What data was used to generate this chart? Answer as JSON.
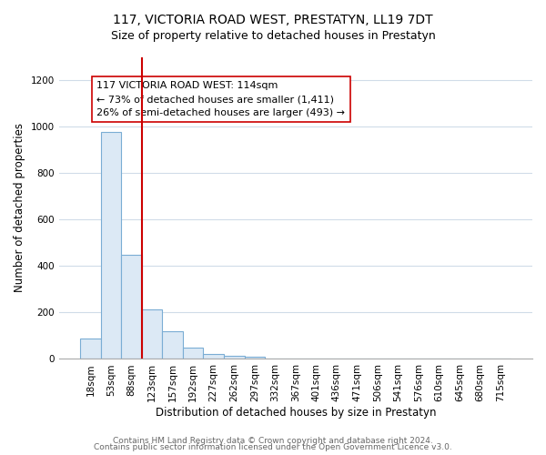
{
  "title": "117, VICTORIA ROAD WEST, PRESTATYN, LL19 7DT",
  "subtitle": "Size of property relative to detached houses in Prestatyn",
  "xlabel": "Distribution of detached houses by size in Prestatyn",
  "ylabel": "Number of detached properties",
  "bar_labels": [
    "18sqm",
    "53sqm",
    "88sqm",
    "123sqm",
    "157sqm",
    "192sqm",
    "227sqm",
    "262sqm",
    "297sqm",
    "332sqm",
    "367sqm",
    "401sqm",
    "436sqm",
    "471sqm",
    "506sqm",
    "541sqm",
    "576sqm",
    "610sqm",
    "645sqm",
    "680sqm",
    "715sqm"
  ],
  "bar_values": [
    88,
    975,
    450,
    215,
    120,
    50,
    20,
    15,
    10,
    0,
    0,
    0,
    0,
    0,
    0,
    0,
    0,
    0,
    0,
    0,
    0
  ],
  "bar_fill_color": "#dce9f5",
  "bar_edge_color": "#7aadd4",
  "vline_color": "#cc0000",
  "vline_position": 2.5,
  "annotation_lines": [
    "117 VICTORIA ROAD WEST: 114sqm",
    "← 73% of detached houses are smaller (1,411)",
    "26% of semi-detached houses are larger (493) →"
  ],
  "ylim": [
    0,
    1300
  ],
  "yticks": [
    0,
    200,
    400,
    600,
    800,
    1000,
    1200
  ],
  "grid_color": "#d0dce8",
  "title_fontsize": 10,
  "subtitle_fontsize": 9,
  "axis_label_fontsize": 8.5,
  "tick_fontsize": 7.5,
  "annotation_fontsize": 8,
  "footer_fontsize": 6.5,
  "footer_line1": "Contains HM Land Registry data © Crown copyright and database right 2024.",
  "footer_line2": "Contains public sector information licensed under the Open Government Licence v3.0."
}
